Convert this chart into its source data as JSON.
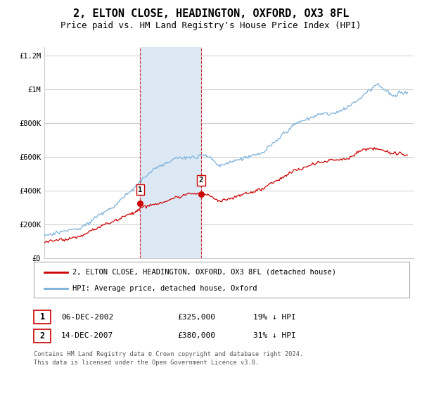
{
  "title": "2, ELTON CLOSE, HEADINGTON, OXFORD, OX3 8FL",
  "subtitle": "Price paid vs. HM Land Registry's House Price Index (HPI)",
  "background_color": "#ffffff",
  "plot_bg_color": "#ffffff",
  "grid_color": "#cccccc",
  "shade_color": "#dce9f5",
  "hpi_color": "#7ab0d8",
  "price_color": "#cc0000",
  "marker_color": "#cc0000",
  "sale1_year": 2002.92,
  "sale1_price": 325000,
  "sale2_year": 2007.95,
  "sale2_price": 380000,
  "legend_label_price": "2, ELTON CLOSE, HEADINGTON, OXFORD, OX3 8FL (detached house)",
  "legend_label_hpi": "HPI: Average price, detached house, Oxford",
  "footer": "Contains HM Land Registry data © Crown copyright and database right 2024.\nThis data is licensed under the Open Government Licence v3.0.",
  "table_rows": [
    {
      "num": "1",
      "date": "06-DEC-2002",
      "price": "£325,000",
      "change": "19% ↓ HPI"
    },
    {
      "num": "2",
      "date": "14-DEC-2007",
      "price": "£380,000",
      "change": "31% ↓ HPI"
    }
  ],
  "ylim": [
    0,
    1250000
  ],
  "xlim_start": 1995.0,
  "xlim_end": 2025.5,
  "title_fontsize": 11,
  "subtitle_fontsize": 9,
  "tick_fontsize": 7.5
}
